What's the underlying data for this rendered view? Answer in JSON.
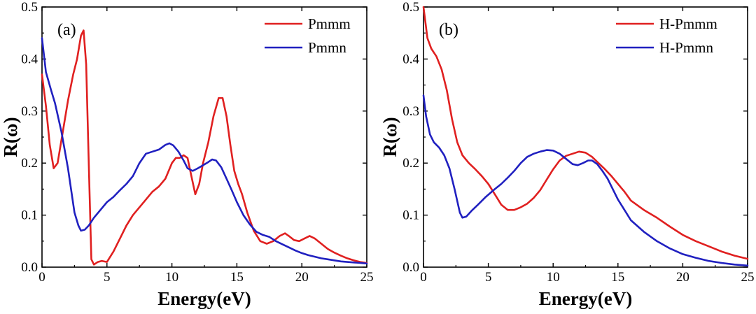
{
  "chart_data": [
    {
      "type": "line",
      "panel_label": "(a)",
      "xlabel": "Energy(eV)",
      "ylabel": "R(ω)",
      "xlim": [
        0,
        25
      ],
      "ylim": [
        0,
        0.5
      ],
      "xticks": [
        0,
        5,
        10,
        15,
        20,
        25
      ],
      "yticks": [
        0.0,
        0.1,
        0.2,
        0.3,
        0.4,
        0.5
      ],
      "xtick_labels": [
        "0",
        "5",
        "10",
        "15",
        "20",
        "25"
      ],
      "ytick_labels": [
        "0.0",
        "0.1",
        "0.2",
        "0.3",
        "0.4",
        "0.5"
      ],
      "grid": false,
      "legend_position": "top-right",
      "series": [
        {
          "name": "Pmmm",
          "color": "#e02020",
          "x": [
            0,
            0.3,
            0.6,
            0.9,
            1.2,
            1.6,
            2.0,
            2.4,
            2.7,
            3.0,
            3.2,
            3.4,
            3.6,
            3.8,
            4.0,
            4.3,
            4.6,
            5.0,
            5.5,
            6.0,
            6.5,
            7.0,
            7.5,
            8.0,
            8.5,
            9.0,
            9.5,
            10.0,
            10.3,
            10.6,
            10.9,
            11.2,
            11.5,
            11.8,
            12.1,
            12.4,
            12.8,
            13.2,
            13.6,
            13.9,
            14.2,
            14.5,
            14.8,
            15.1,
            15.4,
            15.8,
            16.3,
            16.8,
            17.3,
            17.8,
            18.3,
            18.7,
            19.0,
            19.4,
            19.8,
            20.2,
            20.6,
            21.0,
            21.5,
            22.0,
            22.5,
            23.0,
            23.5,
            24.0,
            24.5,
            25.0
          ],
          "y": [
            0.37,
            0.31,
            0.235,
            0.19,
            0.2,
            0.26,
            0.32,
            0.37,
            0.4,
            0.445,
            0.455,
            0.39,
            0.2,
            0.015,
            0.005,
            0.01,
            0.012,
            0.01,
            0.03,
            0.055,
            0.08,
            0.1,
            0.115,
            0.13,
            0.145,
            0.155,
            0.17,
            0.2,
            0.21,
            0.21,
            0.215,
            0.21,
            0.175,
            0.14,
            0.16,
            0.2,
            0.24,
            0.29,
            0.325,
            0.325,
            0.29,
            0.235,
            0.185,
            0.16,
            0.14,
            0.105,
            0.07,
            0.05,
            0.045,
            0.05,
            0.06,
            0.065,
            0.06,
            0.052,
            0.05,
            0.055,
            0.06,
            0.055,
            0.045,
            0.035,
            0.028,
            0.022,
            0.017,
            0.013,
            0.01,
            0.008
          ]
        },
        {
          "name": "Pmmn",
          "color": "#2020c0",
          "x": [
            0,
            0.3,
            0.7,
            1.0,
            1.5,
            2.0,
            2.5,
            2.8,
            3.0,
            3.3,
            3.6,
            4.0,
            4.5,
            5.0,
            5.5,
            6.0,
            6.5,
            7.0,
            7.5,
            8.0,
            8.5,
            9.0,
            9.5,
            9.8,
            10.1,
            10.5,
            10.9,
            11.2,
            11.6,
            12.0,
            12.4,
            12.8,
            13.1,
            13.4,
            13.8,
            14.2,
            14.6,
            15.0,
            15.5,
            16.0,
            16.5,
            17.0,
            17.5,
            18.0,
            18.5,
            19.0,
            19.5,
            20.0,
            20.5,
            21.0,
            21.5,
            22.0,
            22.5,
            23.0,
            23.5,
            24.0,
            24.5,
            25.0
          ],
          "y": [
            0.44,
            0.375,
            0.34,
            0.315,
            0.26,
            0.19,
            0.105,
            0.08,
            0.07,
            0.072,
            0.08,
            0.095,
            0.11,
            0.125,
            0.135,
            0.148,
            0.16,
            0.175,
            0.2,
            0.218,
            0.222,
            0.226,
            0.235,
            0.238,
            0.234,
            0.222,
            0.205,
            0.19,
            0.185,
            0.19,
            0.196,
            0.202,
            0.207,
            0.205,
            0.192,
            0.17,
            0.148,
            0.125,
            0.1,
            0.082,
            0.068,
            0.062,
            0.058,
            0.05,
            0.044,
            0.038,
            0.032,
            0.027,
            0.023,
            0.02,
            0.017,
            0.015,
            0.013,
            0.011,
            0.01,
            0.009,
            0.008,
            0.007
          ]
        }
      ]
    },
    {
      "type": "line",
      "panel_label": "(b)",
      "xlabel": "Energy(eV)",
      "ylabel": "R(ω)",
      "xlim": [
        0,
        25
      ],
      "ylim": [
        0,
        0.5
      ],
      "xticks": [
        0,
        5,
        10,
        15,
        20,
        25
      ],
      "yticks": [
        0.0,
        0.1,
        0.2,
        0.3,
        0.4,
        0.5
      ],
      "xtick_labels": [
        "0",
        "5",
        "10",
        "15",
        "20",
        "25"
      ],
      "ytick_labels": [
        "0.0",
        "0.1",
        "0.2",
        "0.3",
        "0.4",
        "0.5"
      ],
      "grid": false,
      "legend_position": "top-right",
      "series": [
        {
          "name": "H-Pmmm",
          "color": "#e02020",
          "x": [
            0,
            0.15,
            0.3,
            0.6,
            1.0,
            1.4,
            1.8,
            2.2,
            2.6,
            3.0,
            3.5,
            4.0,
            4.5,
            5.0,
            5.5,
            6.0,
            6.5,
            7.0,
            7.5,
            8.0,
            8.5,
            9.0,
            9.5,
            10.0,
            10.5,
            11.0,
            11.5,
            12.0,
            12.5,
            13.0,
            13.5,
            14.0,
            14.5,
            15.0,
            15.5,
            16.0,
            17.0,
            18.0,
            19.0,
            20.0,
            21.0,
            22.0,
            23.0,
            24.0,
            25.0
          ],
          "y": [
            0.5,
            0.47,
            0.44,
            0.42,
            0.405,
            0.38,
            0.34,
            0.285,
            0.24,
            0.215,
            0.2,
            0.188,
            0.175,
            0.16,
            0.14,
            0.12,
            0.11,
            0.11,
            0.115,
            0.122,
            0.133,
            0.148,
            0.168,
            0.188,
            0.205,
            0.214,
            0.218,
            0.222,
            0.22,
            0.212,
            0.2,
            0.188,
            0.175,
            0.16,
            0.145,
            0.128,
            0.11,
            0.095,
            0.078,
            0.062,
            0.05,
            0.04,
            0.03,
            0.022,
            0.016
          ]
        },
        {
          "name": "H-Pmmn",
          "color": "#2020c0",
          "x": [
            0,
            0.2,
            0.5,
            0.8,
            1.2,
            1.6,
            2.0,
            2.4,
            2.8,
            3.0,
            3.3,
            3.7,
            4.2,
            4.8,
            5.5,
            6.0,
            6.5,
            7.0,
            7.5,
            8.0,
            8.5,
            9.0,
            9.5,
            10.0,
            10.5,
            11.0,
            11.5,
            11.9,
            12.3,
            12.7,
            13.0,
            13.4,
            13.8,
            14.2,
            14.6,
            15.0,
            15.5,
            16.0,
            17.0,
            18.0,
            19.0,
            20.0,
            21.0,
            22.0,
            23.0,
            24.0,
            25.0
          ],
          "y": [
            0.33,
            0.29,
            0.255,
            0.24,
            0.23,
            0.215,
            0.19,
            0.15,
            0.105,
            0.095,
            0.097,
            0.108,
            0.12,
            0.135,
            0.15,
            0.16,
            0.172,
            0.185,
            0.2,
            0.212,
            0.218,
            0.222,
            0.225,
            0.224,
            0.218,
            0.208,
            0.198,
            0.196,
            0.2,
            0.205,
            0.205,
            0.198,
            0.185,
            0.17,
            0.15,
            0.13,
            0.11,
            0.09,
            0.068,
            0.05,
            0.036,
            0.025,
            0.018,
            0.012,
            0.008,
            0.005,
            0.003
          ]
        }
      ]
    }
  ]
}
